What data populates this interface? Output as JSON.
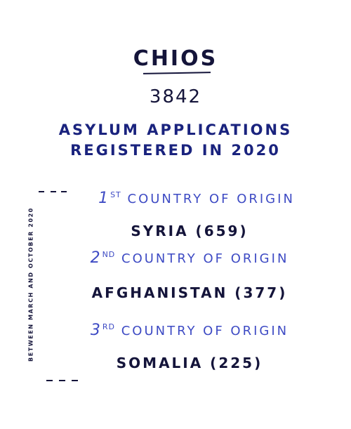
{
  "title": "CHIOS",
  "total": "3842",
  "subtitle_line1": "ASYLUM APPLICATIONS",
  "subtitle_line2": "REGISTERED IN 2020",
  "side_note": "BETWEEN MARCH AND OCTOBER 2020",
  "origins": [
    {
      "ordinal_num": "1",
      "ordinal_suffix": "ST",
      "label": "COUNTRY OF ORIGIN",
      "country": "SYRIA (659)"
    },
    {
      "ordinal_num": "2",
      "ordinal_suffix": "ND",
      "label": "COUNTRY OF ORIGIN",
      "country": "AFGHANISTAN (377)"
    },
    {
      "ordinal_num": "3",
      "ordinal_suffix": "RD",
      "label": "COUNTRY OF ORIGIN",
      "country": "SOMALIA (225)"
    }
  ],
  "colors": {
    "ink_dark": "#14143a",
    "ink_navy": "#1a237e",
    "ink_blue": "#3e4bc4",
    "background": "#ffffff"
  }
}
